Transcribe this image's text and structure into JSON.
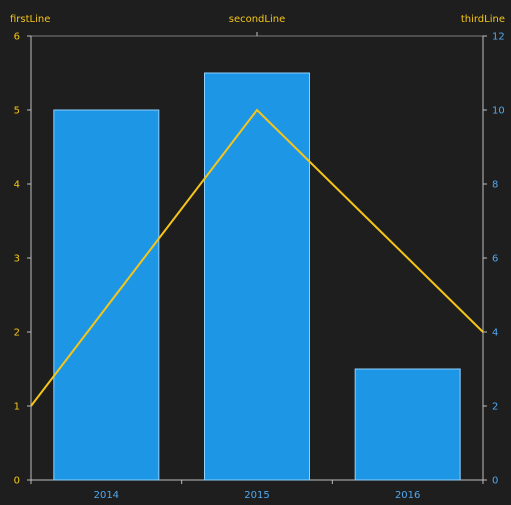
{
  "chart_data": {
    "type": "bar",
    "categories": [
      "2014",
      "2015",
      "2016"
    ],
    "series": [
      {
        "values": [
          5,
          5.5,
          1.5
        ],
        "color": "#1e96e6",
        "axis": "left"
      },
      {
        "values": [
          2,
          10,
          4
        ],
        "color": "#f5c518",
        "axis": "right",
        "type": "line"
      }
    ],
    "top_labels": [
      "firstLine",
      "secondLine",
      "thirdLine"
    ],
    "left_axis": {
      "ylim": [
        0,
        6
      ],
      "ticks": [
        "0",
        "1",
        "2",
        "3",
        "4",
        "5",
        "6"
      ],
      "color": "#f5c518"
    },
    "right_axis": {
      "ylim": [
        0,
        12
      ],
      "ticks": [
        "0",
        "2",
        "4",
        "6",
        "8",
        "10",
        "12"
      ],
      "color": "#4fa8f0"
    },
    "grid": false
  }
}
